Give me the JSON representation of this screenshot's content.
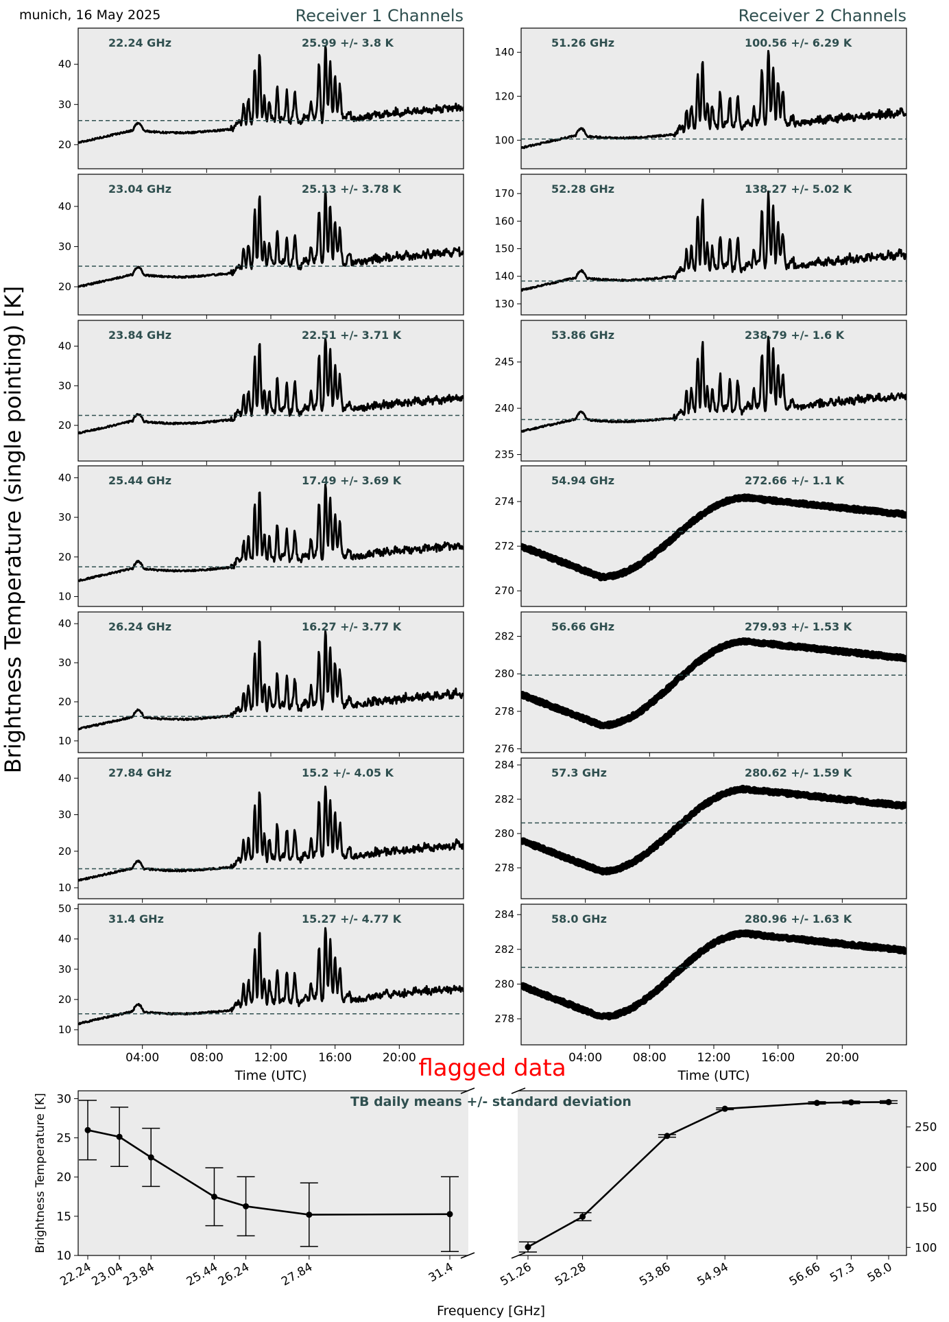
{
  "header": {
    "location_date": "munich, 16 May 2025",
    "receiver1_title": "Receiver 1 Channels",
    "receiver2_title": "Receiver 2 Channels",
    "ylabel": "Brightness Temperature (single pointing) [K]",
    "flag_text": "flagged data"
  },
  "colors": {
    "panel_bg": "#ebebeb",
    "title_color": "#2f4f4f",
    "flag_color": "#ff0000",
    "trace_color": "#000000",
    "mean_line_color": "#2f4f4f"
  },
  "chart_data": [
    {
      "type": "line",
      "receiver": 1,
      "panels": [
        {
          "freq_label": "22.24 GHz",
          "stat_label": "25.99 +/- 3.8 K",
          "mean": 25.99,
          "base_start": 20.5,
          "ylim": [
            14,
            49
          ],
          "yticks": [
            20,
            30,
            40
          ],
          "style": "wv"
        },
        {
          "freq_label": "23.04 GHz",
          "stat_label": "25.13 +/- 3.78 K",
          "mean": 25.13,
          "base_start": 20.0,
          "ylim": [
            13,
            48
          ],
          "yticks": [
            20,
            30,
            40
          ],
          "style": "wv"
        },
        {
          "freq_label": "23.84 GHz",
          "stat_label": "22.51 +/- 3.71 K",
          "mean": 22.51,
          "base_start": 18.0,
          "ylim": [
            11,
            46.5
          ],
          "yticks": [
            20,
            30,
            40
          ],
          "style": "wv"
        },
        {
          "freq_label": "25.44 GHz",
          "stat_label": "17.49 +/- 3.69 K",
          "mean": 17.49,
          "base_start": 14.0,
          "ylim": [
            7.5,
            43
          ],
          "yticks": [
            10,
            20,
            30,
            40
          ],
          "style": "wv"
        },
        {
          "freq_label": "26.24 GHz",
          "stat_label": "16.27 +/- 3.77 K",
          "mean": 16.27,
          "base_start": 13.0,
          "ylim": [
            7,
            43
          ],
          "yticks": [
            10,
            20,
            30,
            40
          ],
          "style": "wv"
        },
        {
          "freq_label": "27.84 GHz",
          "stat_label": "15.2 +/- 4.05 K",
          "mean": 15.2,
          "base_start": 12.0,
          "ylim": [
            7,
            45.5
          ],
          "yticks": [
            10,
            20,
            30,
            40
          ],
          "style": "wv"
        },
        {
          "freq_label": "31.4 GHz",
          "stat_label": "15.27 +/- 4.77 K",
          "mean": 15.27,
          "base_start": 12.0,
          "ylim": [
            5,
            51.5
          ],
          "yticks": [
            10,
            20,
            30,
            40,
            50
          ],
          "style": "wv"
        }
      ],
      "xlabel": "Time (UTC)",
      "xticks": [
        "04:00",
        "08:00",
        "12:00",
        "16:00",
        "20:00"
      ]
    },
    {
      "type": "line",
      "receiver": 2,
      "panels": [
        {
          "freq_label": "51.26 GHz",
          "stat_label": "100.56 +/- 6.29 K",
          "mean": 100.56,
          "base_start": 96.5,
          "ylim": [
            87,
            151
          ],
          "yticks": [
            100,
            120,
            140
          ],
          "style": "wv"
        },
        {
          "freq_label": "52.28 GHz",
          "stat_label": "138.27 +/- 5.02 K",
          "mean": 138.27,
          "base_start": 135.0,
          "ylim": [
            126,
            177
          ],
          "yticks": [
            130,
            140,
            150,
            160,
            170
          ],
          "style": "wv"
        },
        {
          "freq_label": "53.86 GHz",
          "stat_label": "238.79 +/- 1.6 K",
          "mean": 238.79,
          "base_start": 237.5,
          "ylim": [
            234.3,
            249.5
          ],
          "yticks": [
            235,
            240,
            245
          ],
          "style": "wv"
        },
        {
          "freq_label": "54.94 GHz",
          "stat_label": "272.66 +/- 1.1 K",
          "mean": 272.66,
          "base_start": 272.0,
          "ylim": [
            269.3,
            275.6
          ],
          "yticks": [
            270,
            272,
            274
          ],
          "style": "smooth"
        },
        {
          "freq_label": "56.66 GHz",
          "stat_label": "279.93 +/- 1.53 K",
          "mean": 279.93,
          "base_start": 278.9,
          "ylim": [
            275.8,
            283.3
          ],
          "yticks": [
            276,
            278,
            280,
            282
          ],
          "style": "smooth"
        },
        {
          "freq_label": "57.3 GHz",
          "stat_label": "280.62 +/- 1.59 K",
          "mean": 280.62,
          "base_start": 279.6,
          "ylim": [
            276.2,
            284.4
          ],
          "yticks": [
            278,
            280,
            282,
            284
          ],
          "style": "smooth"
        },
        {
          "freq_label": "58.0 GHz",
          "stat_label": "280.96 +/- 1.63 K",
          "mean": 280.96,
          "base_start": 279.9,
          "ylim": [
            276.5,
            284.6
          ],
          "yticks": [
            278,
            280,
            282,
            284
          ],
          "style": "smooth"
        }
      ],
      "xlabel": "Time (UTC)",
      "xticks": [
        "04:00",
        "08:00",
        "12:00",
        "16:00",
        "20:00"
      ]
    },
    {
      "type": "line",
      "title": "TB daily means +/- standard deviation",
      "xlabel": "Frequency [GHz]",
      "ylabel_left": "Brightness Temperature [K]",
      "left": {
        "freqs": [
          22.24,
          23.04,
          23.84,
          25.44,
          26.24,
          27.84,
          31.4
        ],
        "tick_labels": [
          "22.24",
          "23.04",
          "23.84",
          "25.44",
          "26.24",
          "27.84",
          "31.4"
        ],
        "means": [
          25.99,
          25.13,
          22.51,
          17.49,
          16.27,
          15.2,
          15.27
        ],
        "stds": [
          3.8,
          3.78,
          3.71,
          3.69,
          3.77,
          4.05,
          4.77
        ],
        "ylim": [
          10,
          31
        ],
        "yticks": [
          10,
          15,
          20,
          25,
          30
        ]
      },
      "right": {
        "freqs": [
          51.26,
          52.28,
          53.86,
          54.94,
          56.66,
          57.3,
          58.0
        ],
        "tick_labels": [
          "51.26",
          "52.28",
          "53.86",
          "54.94",
          "56.66",
          "57.3",
          "58.0"
        ],
        "means": [
          100.56,
          138.27,
          238.79,
          272.66,
          279.93,
          280.62,
          280.96
        ],
        "stds": [
          6.29,
          5.02,
          1.6,
          1.1,
          1.53,
          1.59,
          1.63
        ],
        "ylim": [
          90,
          295
        ],
        "yticks": [
          100,
          150,
          200,
          250
        ]
      }
    }
  ]
}
